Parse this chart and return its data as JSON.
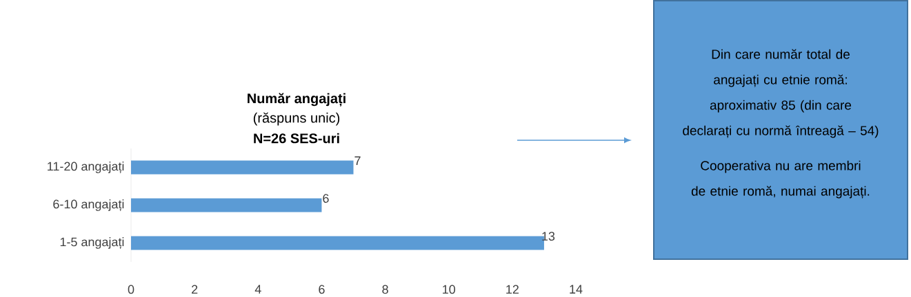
{
  "chart_data": {
    "type": "bar",
    "orientation": "horizontal",
    "title": "Număr angajați",
    "subtitle": "(răspuns unic)",
    "annotations": [
      "N=26 SES-uri",
      "Din care număr total de angajați cu etnie romă: aproximativ 85 (din care declarați cu normă întreagă – 54)",
      "Cooperativa nu are membri de etnie romă, numai angajați."
    ],
    "categories": [
      "11-20 angajați",
      "6-10 angajați",
      "1-5 angajați"
    ],
    "values": [
      7,
      6,
      13
    ],
    "color": "#5b9bd5",
    "data_labels": true,
    "xlim": [
      0,
      14
    ],
    "xticks": [
      0,
      2,
      4,
      6,
      8,
      10,
      12,
      14
    ]
  }
}
